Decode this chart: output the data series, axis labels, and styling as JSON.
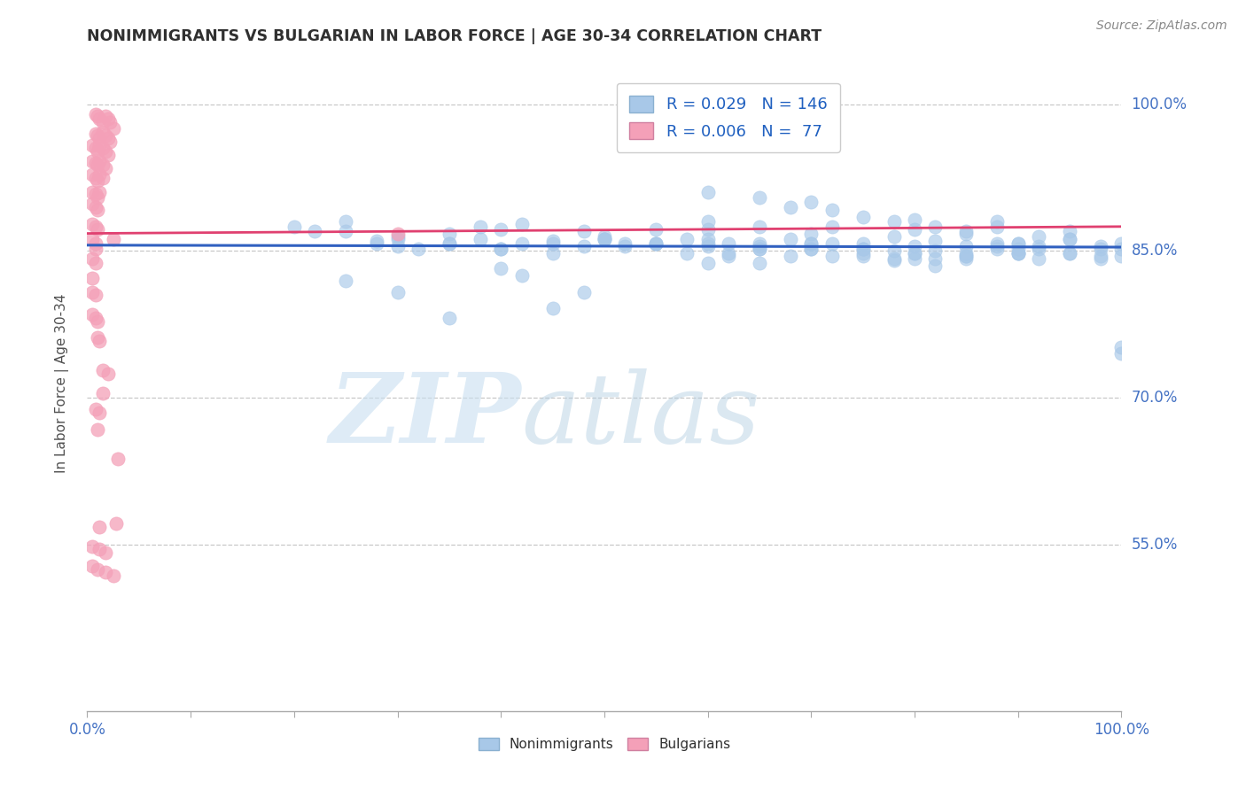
{
  "title": "NONIMMIGRANTS VS BULGARIAN IN LABOR FORCE | AGE 30-34 CORRELATION CHART",
  "source": "Source: ZipAtlas.com",
  "ylabel": "In Labor Force | Age 30-34",
  "xlim": [
    0.0,
    1.0
  ],
  "ylim": [
    0.38,
    1.05
  ],
  "yticks": [
    0.55,
    0.7,
    0.85,
    1.0
  ],
  "ytick_labels": [
    "55.0%",
    "70.0%",
    "85.0%",
    "100.0%"
  ],
  "xtick_positions": [
    0.0,
    0.1,
    0.2,
    0.3,
    0.4,
    0.5,
    0.6,
    0.7,
    0.8,
    0.9,
    1.0
  ],
  "xtick_labels_shown": {
    "0.0": "0.0%",
    "1.0": "100.0%"
  },
  "blue_scatter_color": "#a8c8e8",
  "pink_scatter_color": "#f4a0b8",
  "blue_line_color": "#3060c0",
  "pink_line_color": "#e04070",
  "grid_color": "#c8c8c8",
  "right_label_color": "#4472c4",
  "title_color": "#303030",
  "blue_trend_x0": 0.0,
  "blue_trend_y0": 0.856,
  "blue_trend_x1": 1.0,
  "blue_trend_y1": 0.854,
  "pink_trend_x0": 0.0,
  "pink_trend_y0": 0.868,
  "pink_trend_x1": 1.0,
  "pink_trend_y1": 0.875,
  "scatter_blue_x": [
    0.2,
    0.22,
    0.25,
    0.28,
    0.3,
    0.35,
    0.38,
    0.4,
    0.42,
    0.45,
    0.48,
    0.5,
    0.52,
    0.55,
    0.58,
    0.6,
    0.62,
    0.65,
    0.68,
    0.7,
    0.72,
    0.75,
    0.78,
    0.8,
    0.82,
    0.85,
    0.88,
    0.9,
    0.92,
    0.95,
    0.98,
    1.0,
    0.78,
    0.82,
    0.85,
    0.88,
    0.9,
    0.92,
    0.95,
    0.98,
    1.0,
    0.6,
    0.65,
    0.68,
    0.7,
    0.72,
    0.75,
    0.78,
    0.8,
    0.82,
    0.85,
    0.88,
    0.25,
    0.3,
    0.5,
    0.55,
    0.6,
    0.35,
    0.4,
    0.42,
    0.45,
    0.48,
    0.65,
    0.7,
    0.72,
    0.75,
    0.78,
    0.8,
    0.82,
    0.85,
    0.88,
    0.9,
    0.92,
    0.95,
    0.98,
    1.0,
    0.6,
    0.62,
    0.65,
    0.25,
    0.28,
    0.3,
    0.32,
    0.35,
    0.38,
    0.4,
    0.42,
    0.45,
    0.48,
    0.5,
    0.52,
    0.55,
    0.58,
    0.6,
    0.62,
    0.65,
    0.68,
    0.7,
    0.72,
    0.75,
    0.78,
    0.8,
    0.82,
    0.85,
    0.88,
    0.9,
    0.92,
    0.95,
    0.98,
    1.0,
    0.55,
    0.6,
    0.65,
    0.7,
    0.75,
    0.8,
    0.85,
    0.9,
    0.95,
    1.0,
    0.3,
    0.35,
    0.4,
    0.45,
    0.5,
    0.6,
    0.65,
    0.7,
    0.75,
    0.8,
    0.85,
    0.9
  ],
  "scatter_blue_y": [
    0.875,
    0.87,
    0.88,
    0.86,
    0.865,
    0.868,
    0.875,
    0.872,
    0.878,
    0.86,
    0.87,
    0.865,
    0.858,
    0.872,
    0.862,
    0.88,
    0.858,
    0.875,
    0.862,
    0.868,
    0.875,
    0.858,
    0.865,
    0.872,
    0.86,
    0.868,
    0.875,
    0.858,
    0.865,
    0.87,
    0.855,
    0.745,
    0.84,
    0.835,
    0.845,
    0.858,
    0.848,
    0.852,
    0.862,
    0.845,
    0.752,
    0.91,
    0.905,
    0.895,
    0.9,
    0.892,
    0.885,
    0.88,
    0.882,
    0.875,
    0.87,
    0.88,
    0.82,
    0.808,
    0.862,
    0.858,
    0.872,
    0.782,
    0.832,
    0.825,
    0.792,
    0.808,
    0.858,
    0.852,
    0.858,
    0.845,
    0.85,
    0.842,
    0.85,
    0.842,
    0.855,
    0.848,
    0.855,
    0.862,
    0.852,
    0.858,
    0.838,
    0.845,
    0.838,
    0.87,
    0.858,
    0.862,
    0.852,
    0.858,
    0.862,
    0.852,
    0.858,
    0.848,
    0.855,
    0.862,
    0.855,
    0.858,
    0.848,
    0.855,
    0.848,
    0.852,
    0.845,
    0.852,
    0.845,
    0.848,
    0.842,
    0.848,
    0.842,
    0.845,
    0.852,
    0.848,
    0.842,
    0.848,
    0.842,
    0.845,
    0.858,
    0.862,
    0.855,
    0.858,
    0.852,
    0.855,
    0.848,
    0.852,
    0.848,
    0.852,
    0.855,
    0.858,
    0.852,
    0.858,
    0.862,
    0.858,
    0.852,
    0.858,
    0.852,
    0.848,
    0.855,
    0.858
  ],
  "scatter_pink_x": [
    0.008,
    0.01,
    0.012,
    0.015,
    0.018,
    0.02,
    0.022,
    0.025,
    0.008,
    0.01,
    0.012,
    0.015,
    0.018,
    0.02,
    0.022,
    0.005,
    0.008,
    0.01,
    0.012,
    0.015,
    0.018,
    0.02,
    0.005,
    0.008,
    0.01,
    0.012,
    0.015,
    0.018,
    0.005,
    0.008,
    0.01,
    0.012,
    0.015,
    0.005,
    0.008,
    0.01,
    0.012,
    0.005,
    0.008,
    0.01,
    0.005,
    0.008,
    0.01,
    0.005,
    0.008,
    0.005,
    0.008,
    0.005,
    0.005,
    0.008,
    0.005,
    0.008,
    0.01,
    0.01,
    0.012,
    0.03,
    0.015,
    0.02,
    0.015,
    0.008,
    0.008,
    0.012,
    0.01,
    0.025,
    0.028,
    0.012,
    0.005,
    0.012,
    0.018,
    0.005,
    0.01,
    0.018,
    0.025,
    0.3
  ],
  "scatter_pink_y": [
    0.99,
    0.988,
    0.985,
    0.982,
    0.988,
    0.985,
    0.982,
    0.975,
    0.97,
    0.968,
    0.965,
    0.972,
    0.968,
    0.965,
    0.962,
    0.958,
    0.955,
    0.952,
    0.958,
    0.955,
    0.952,
    0.948,
    0.942,
    0.94,
    0.938,
    0.942,
    0.938,
    0.935,
    0.928,
    0.925,
    0.922,
    0.928,
    0.925,
    0.91,
    0.908,
    0.905,
    0.91,
    0.898,
    0.895,
    0.892,
    0.878,
    0.875,
    0.872,
    0.862,
    0.858,
    0.842,
    0.838,
    0.822,
    0.808,
    0.805,
    0.785,
    0.782,
    0.778,
    0.762,
    0.758,
    0.638,
    0.728,
    0.725,
    0.705,
    0.852,
    0.688,
    0.685,
    0.668,
    0.862,
    0.572,
    0.568,
    0.548,
    0.545,
    0.542,
    0.528,
    0.525,
    0.522,
    0.518,
    0.868
  ]
}
